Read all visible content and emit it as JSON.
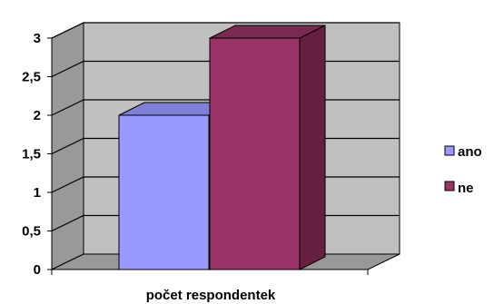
{
  "chart_data": {
    "type": "bar",
    "style": "3d-column",
    "categories": [
      "počet respondentek"
    ],
    "series": [
      {
        "name": "ano",
        "values": [
          2
        ],
        "color": "#9999ff",
        "side_color": "#7777dd",
        "top_color": "#7f7fd6"
      },
      {
        "name": "ne",
        "values": [
          3
        ],
        "color": "#993366",
        "side_color": "#66203f",
        "top_color": "#7a2a52"
      }
    ],
    "xlabel": "počet respondentek",
    "ylim": [
      0,
      3
    ],
    "y_ticks": [
      "0",
      "0,5",
      "1",
      "1,5",
      "2",
      "2,5",
      "3"
    ],
    "y_tick_values": [
      0,
      0.5,
      1,
      1.5,
      2,
      2.5,
      3
    ],
    "grid": true,
    "wall_color": "#c0c0c0",
    "floor_color": "#999999",
    "legend_position": "right"
  }
}
